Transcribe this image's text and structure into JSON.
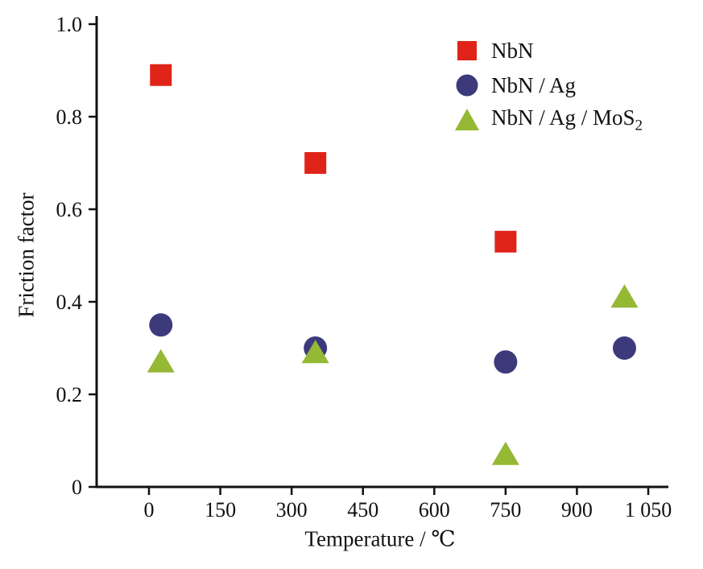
{
  "chart_data": {
    "type": "scatter",
    "title": "",
    "xlabel": "Temperature / ℃",
    "ylabel": "Friction factor",
    "xlim": [
      -110,
      1090
    ],
    "ylim": [
      0,
      1.0
    ],
    "grid": false,
    "legend_position": "top-right",
    "x_ticks": [
      0,
      150,
      300,
      450,
      600,
      750,
      900,
      1050
    ],
    "x_tick_labels": [
      "0",
      "150",
      "300",
      "450",
      "600",
      "750",
      "900",
      "1 050"
    ],
    "y_ticks": [
      0,
      0.2,
      0.4,
      0.6,
      0.8,
      1.0
    ],
    "y_tick_labels": [
      "0",
      "0.2",
      "0.4",
      "0.6",
      "0.8",
      "1.0"
    ],
    "series": [
      {
        "name": "NbN",
        "marker": "square",
        "color": "#e02318",
        "x": [
          25,
          350,
          750
        ],
        "y": [
          0.89,
          0.7,
          0.53
        ]
      },
      {
        "name": "NbN / Ag",
        "marker": "circle",
        "color": "#3d3a7c",
        "x": [
          25,
          350,
          750,
          1000
        ],
        "y": [
          0.35,
          0.3,
          0.27,
          0.3
        ]
      },
      {
        "name": "NbN / Ag / MoS2",
        "marker": "triangle",
        "color": "#95b835",
        "x": [
          25,
          350,
          750,
          1000
        ],
        "y": [
          0.27,
          0.29,
          0.07,
          0.41
        ]
      }
    ],
    "legend": [
      {
        "label": "NbN",
        "sub": ""
      },
      {
        "label": "NbN / Ag",
        "sub": ""
      },
      {
        "label": "NbN / Ag / MoS",
        "sub": "2"
      }
    ]
  }
}
